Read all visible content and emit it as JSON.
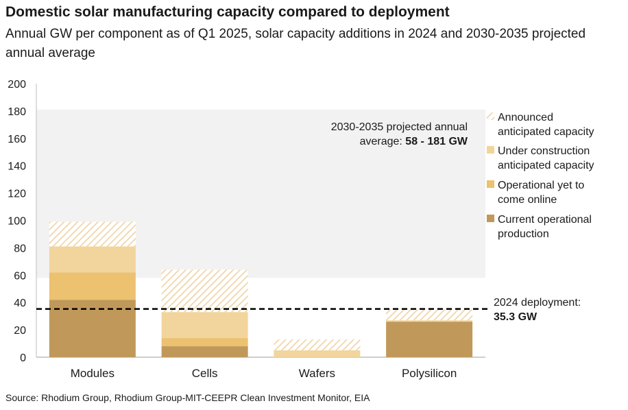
{
  "chart_data": {
    "type": "bar",
    "stacked": true,
    "title": "Domestic solar manufacturing capacity compared to deployment",
    "subtitle": "Annual GW per component as of Q1 2025, solar capacity additions in 2024 and 2030-2035 projected annual average",
    "categories": [
      "Modules",
      "Cells",
      "Wafers",
      "Polysilicon"
    ],
    "ylim": [
      0,
      200
    ],
    "yticks": [
      0,
      20,
      40,
      60,
      80,
      100,
      120,
      140,
      160,
      180,
      200
    ],
    "grid": false,
    "legend_position": "right",
    "series": [
      {
        "name": "Current operational production",
        "values": [
          42,
          8,
          0,
          26
        ],
        "color": "#c0995a",
        "pattern": "solid"
      },
      {
        "name": "Operational yet to come online",
        "values": [
          20,
          6,
          0,
          0
        ],
        "color": "#ecc170",
        "pattern": "solid"
      },
      {
        "name": "Under construction anticipated capacity",
        "values": [
          19,
          19,
          5,
          1
        ],
        "color": "#f2d59d",
        "pattern": "solid"
      },
      {
        "name": "Announced anticipated capacity",
        "values": [
          18,
          31,
          8,
          8
        ],
        "color": "#f0d5aa",
        "pattern": "hatched"
      }
    ],
    "legend_lines": {
      "announced": [
        "Announced",
        "anticipated capacity"
      ],
      "under_construction": [
        "Under construction",
        "anticipated capacity"
      ],
      "yet_to_come": [
        "Operational yet to",
        "come online"
      ],
      "current": [
        "Current operational",
        "production"
      ]
    },
    "projected_band": {
      "range": [
        58,
        181
      ],
      "label_line1": "2030-2035 projected annual",
      "label_line2_prefix": "average: ",
      "label_line2_bold": "58 - 181 GW",
      "color": "#f2f2f2"
    },
    "deployment_line": {
      "value": 35.3,
      "label_line1": "2024 deployment:",
      "label_line2": "35.3 GW"
    }
  },
  "source": "Source: Rhodium Group, Rhodium Group-MIT-CEEPR Clean Investment Monitor, EIA"
}
